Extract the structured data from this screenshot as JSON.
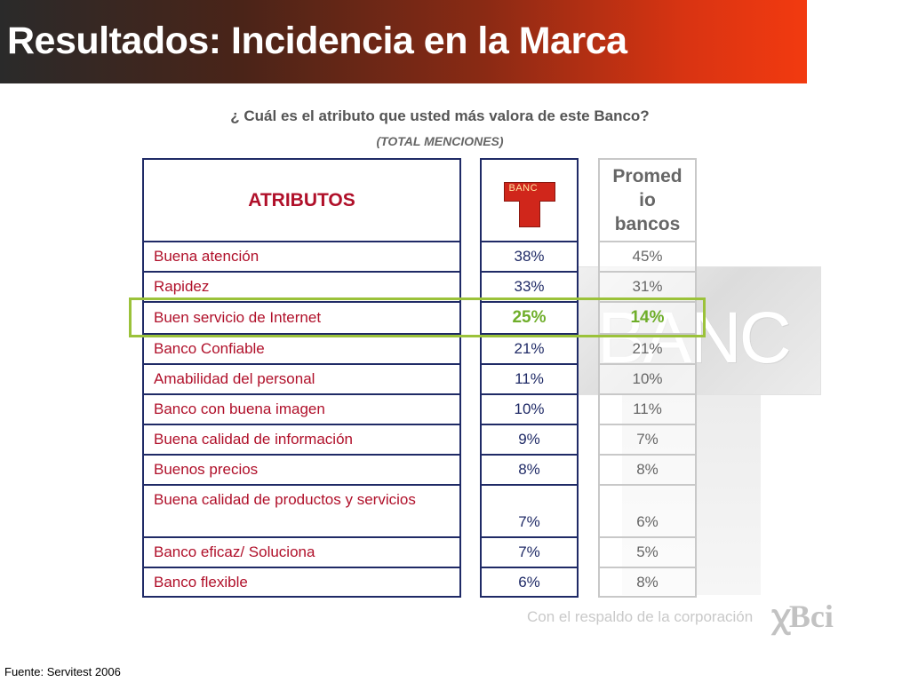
{
  "header": {
    "title": "Resultados: Incidencia en la Marca"
  },
  "question": "¿ Cuál es el atributo que usted más valora de este Banco?",
  "subquestion": "(TOTAL MENCIONES)",
  "table": {
    "attr_header": "ATRIBUTOS",
    "avg_header_lines": [
      "Promed",
      "io",
      "bancos"
    ],
    "logo_text": "BANC",
    "rows": [
      {
        "attr": "Buena atención",
        "bank": "38%",
        "avg": "45%"
      },
      {
        "attr": "Rapidez",
        "bank": "33%",
        "avg": "31%"
      },
      {
        "attr": "Buen servicio de Internet",
        "bank": "25%",
        "avg": "14%",
        "highlighted": true
      },
      {
        "attr": "Banco Confiable",
        "bank": "21%",
        "avg": "21%"
      },
      {
        "attr": "Amabilidad del personal",
        "bank": "11%",
        "avg": "10%"
      },
      {
        "attr": "Banco con buena imagen",
        "bank": "10%",
        "avg": "11%"
      },
      {
        "attr": "Buena calidad de información",
        "bank": "9%",
        "avg": "7%"
      },
      {
        "attr": "Buenos precios",
        "bank": "8%",
        "avg": "8%"
      },
      {
        "attr": "Buena calidad de productos y servicios",
        "bank": "7%",
        "avg": "6%"
      },
      {
        "attr": "Banco eficaz/ Soluciona",
        "bank": "7%",
        "avg": "5%"
      },
      {
        "attr": "Banco flexible",
        "bank": "6%",
        "avg": "8%"
      }
    ]
  },
  "watermark_text": "BANC",
  "corporate_note": "Con el respaldo de la corporación",
  "corporate_logo": "Bci",
  "source": "Fuente: Servitest 2006",
  "colors": {
    "attr_text": "#b0102a",
    "bank_text": "#1f2a66",
    "highlight": "#9bc23a",
    "header_start": "#2a2a2a",
    "header_end": "#f23a10"
  }
}
